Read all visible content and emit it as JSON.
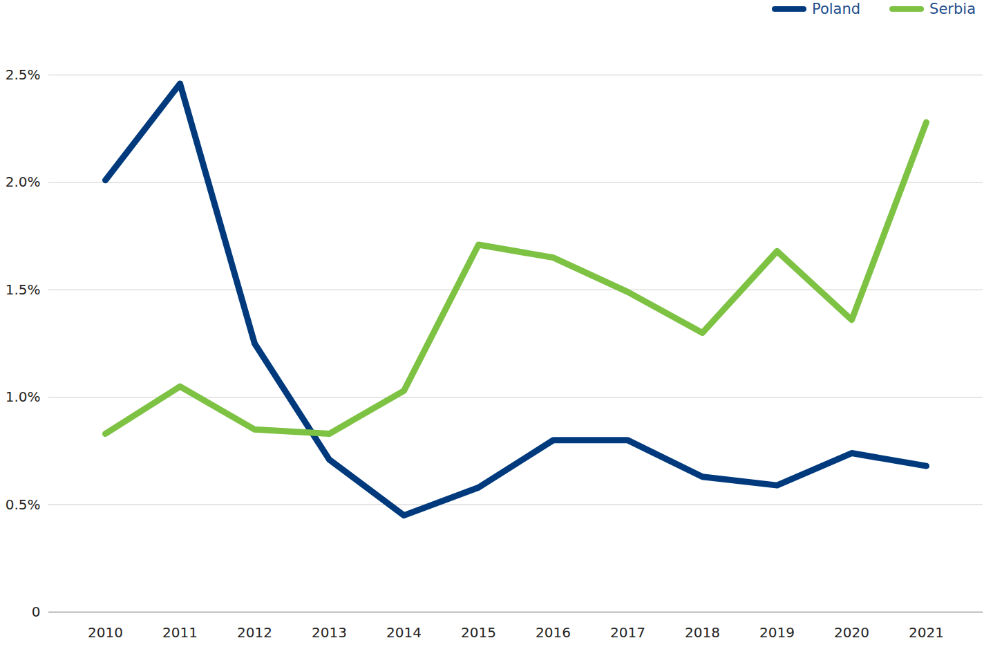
{
  "chart_data": {
    "type": "line",
    "categories": [
      "2010",
      "2011",
      "2012",
      "2013",
      "2014",
      "2015",
      "2016",
      "2017",
      "2018",
      "2019",
      "2020",
      "2021"
    ],
    "series": [
      {
        "name": "Poland",
        "color": "#003a7d",
        "values": [
          2.01,
          2.46,
          1.25,
          0.71,
          0.45,
          0.58,
          0.8,
          0.8,
          0.63,
          0.59,
          0.74,
          0.68
        ]
      },
      {
        "name": "Serbia",
        "color": "#7dc243",
        "values": [
          0.83,
          1.05,
          0.85,
          0.83,
          1.03,
          1.71,
          1.65,
          1.49,
          1.3,
          1.68,
          1.36,
          2.28
        ]
      }
    ],
    "ylim": [
      0,
      2.5
    ],
    "yticks": [
      0,
      {
        "value": 0.5,
        "label": "0.5%"
      },
      {
        "value": 1,
        "label": "1.0%"
      },
      {
        "value": 1.5,
        "label": "1.5%"
      },
      {
        "value": 2,
        "label": "2.0%"
      },
      {
        "value": 2.5,
        "label": "2.5%"
      }
    ],
    "grid": true,
    "legend": "top-right"
  }
}
